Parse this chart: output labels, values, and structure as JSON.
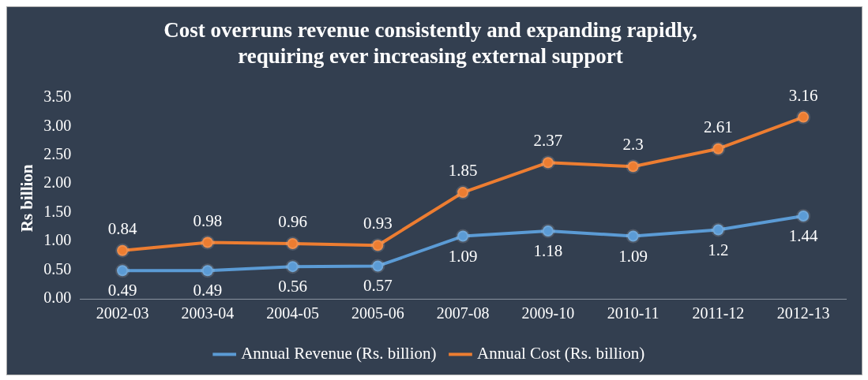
{
  "chart_data": {
    "type": "line",
    "title": "Cost overruns revenue consistently and expanding rapidly,\nrequiring ever increasing external support",
    "ylabel": "Rs billion",
    "categories": [
      "2002-03",
      "2003-04",
      "2004-05",
      "2005-06",
      "2007-08",
      "2009-10",
      "2010-11",
      "2011-12",
      "2012-13"
    ],
    "series": [
      {
        "name": "Annual Revenue (Rs. billion)",
        "color": "#5b9bd5",
        "values": [
          0.49,
          0.49,
          0.56,
          0.57,
          1.09,
          1.18,
          1.09,
          1.2,
          1.44
        ]
      },
      {
        "name": "Annual Cost (Rs. billion)",
        "color": "#ed7d31",
        "values": [
          0.84,
          0.98,
          0.96,
          0.93,
          1.85,
          2.37,
          2.3,
          2.61,
          3.16
        ]
      }
    ],
    "ylim": [
      0,
      3.5
    ],
    "yticks": [
      {
        "value": 0,
        "label": "0.00"
      },
      {
        "value": 0.5,
        "label": "0.50"
      },
      {
        "value": 1,
        "label": "1.00"
      },
      {
        "value": 1.5,
        "label": "1.50"
      },
      {
        "value": 2,
        "label": "2.00"
      },
      {
        "value": 2.5,
        "label": "2.50"
      },
      {
        "value": 3,
        "label": "3.00"
      },
      {
        "value": 3.5,
        "label": "3.50"
      }
    ],
    "grid": false,
    "legend": "bottom",
    "marker": "circle",
    "line_style": "solid",
    "data_labels": true
  }
}
